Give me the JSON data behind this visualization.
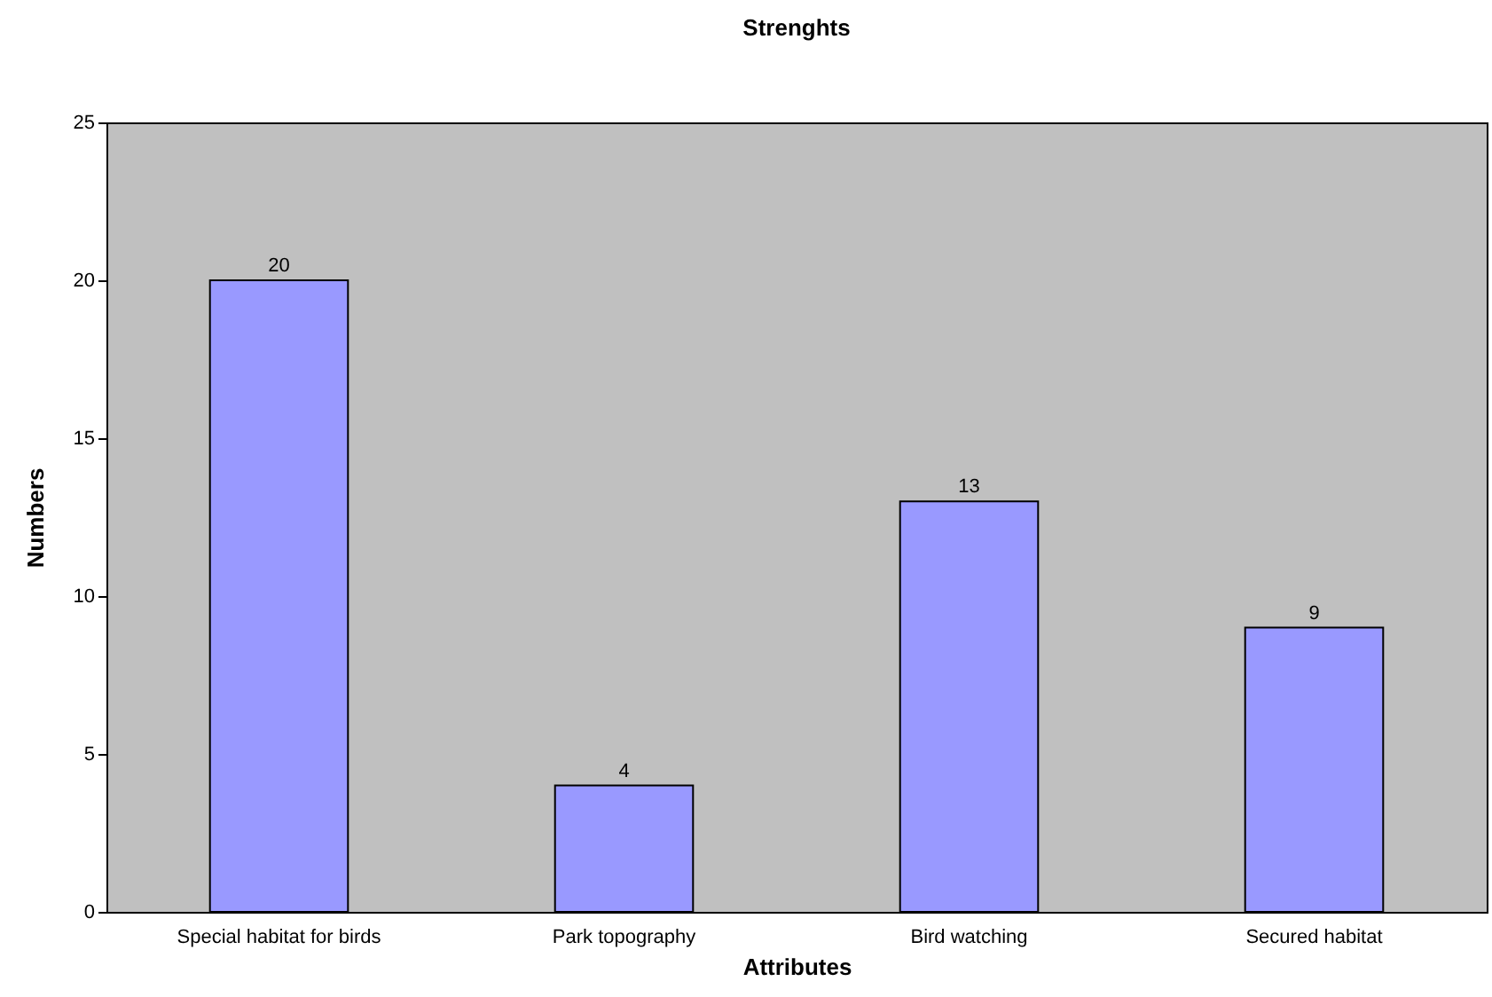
{
  "chart_data": {
    "type": "bar",
    "title": "Strenghts",
    "xlabel": "Attributes",
    "ylabel": "Numbers",
    "categories": [
      "Special habitat for birds",
      "Park topography",
      "Bird watching",
      "Secured habitat"
    ],
    "values": [
      20,
      4,
      13,
      9
    ],
    "color": "#9999ff",
    "ylim": [
      0,
      25
    ],
    "yticks": [
      0,
      5,
      10,
      15,
      20,
      25
    ],
    "grid": false,
    "data_labels": true
  }
}
